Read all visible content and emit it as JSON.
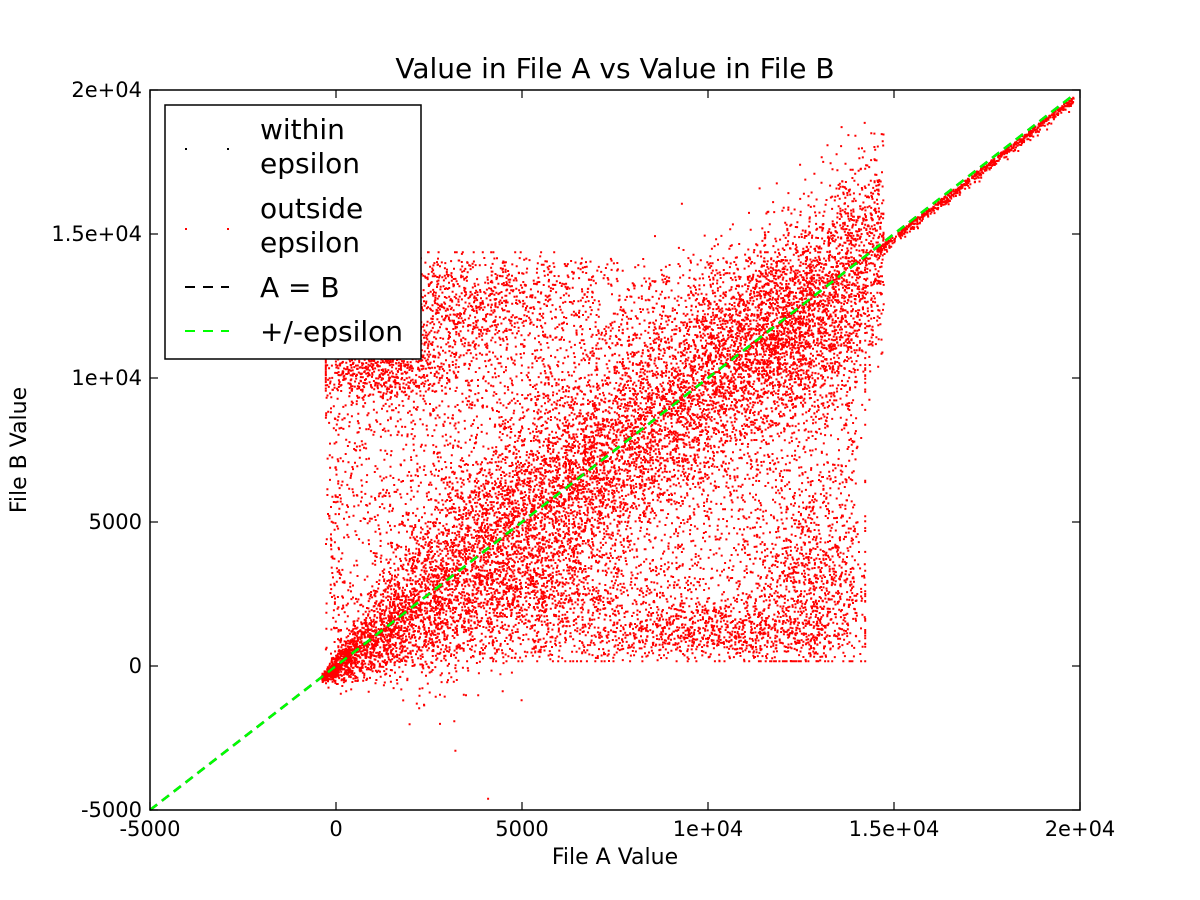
{
  "chart_data": {
    "type": "scatter",
    "title": "Value in File A vs Value in File B",
    "xlabel": "File A Value",
    "ylabel": "File B Value",
    "xlim": [
      -5000,
      20000
    ],
    "ylim": [
      -5000,
      20000
    ],
    "xticks": [
      -5000,
      0,
      5000,
      10000,
      15000,
      20000
    ],
    "yticks": [
      -5000,
      0,
      5000,
      10000,
      15000,
      20000
    ],
    "xtick_labels": [
      "-5000",
      "0",
      "5000",
      "1e+04",
      "1.5e+04",
      "2e+04"
    ],
    "ytick_labels": [
      "-5000",
      "0",
      "5000",
      "1e+04",
      "1.5e+04",
      "2e+04"
    ],
    "grid": false,
    "legend_position": "upper-left",
    "series": [
      {
        "name": "within\nepsilon",
        "kind": "scatter",
        "color": "#000000",
        "points": []
      },
      {
        "name": "outside\nepsilon",
        "kind": "scatter",
        "color": "#ff0000",
        "distribution": {
          "diagonal_band": {
            "x_range": [
              -400,
              14700
            ],
            "spread": 3000
          },
          "upper_diagonal": {
            "x_range": [
              14500,
              19800
            ],
            "spread": 150
          },
          "uniform_box": {
            "x_range": [
              -300,
              14000
            ],
            "y_range": [
              300,
              14200
            ]
          },
          "clusters": [
            {
              "x": 3500,
              "y": 12500,
              "sx": 1600,
              "sy": 900
            },
            {
              "x": 1200,
              "y": 10500,
              "sx": 900,
              "sy": 700
            },
            {
              "x": 12700,
              "y": 3000,
              "sx": 800,
              "sy": 1700
            },
            {
              "x": 10000,
              "y": 1300,
              "sx": 1700,
              "sy": 500
            },
            {
              "x": 12000,
              "y": 11000,
              "sx": 1200,
              "sy": 1500
            },
            {
              "x": 5500,
              "y": 2500,
              "sx": 1500,
              "sy": 1200
            }
          ]
        }
      },
      {
        "name": "A = B",
        "kind": "line",
        "style": "dashed",
        "color": "#000000",
        "x": [
          -5000,
          19800
        ],
        "y": [
          -5000,
          19800
        ]
      },
      {
        "name": "+/-epsilon",
        "kind": "line",
        "style": "dashed",
        "color": "#00ff00",
        "x": [
          -5000,
          19800
        ],
        "y": [
          -5000,
          19800
        ]
      }
    ]
  }
}
